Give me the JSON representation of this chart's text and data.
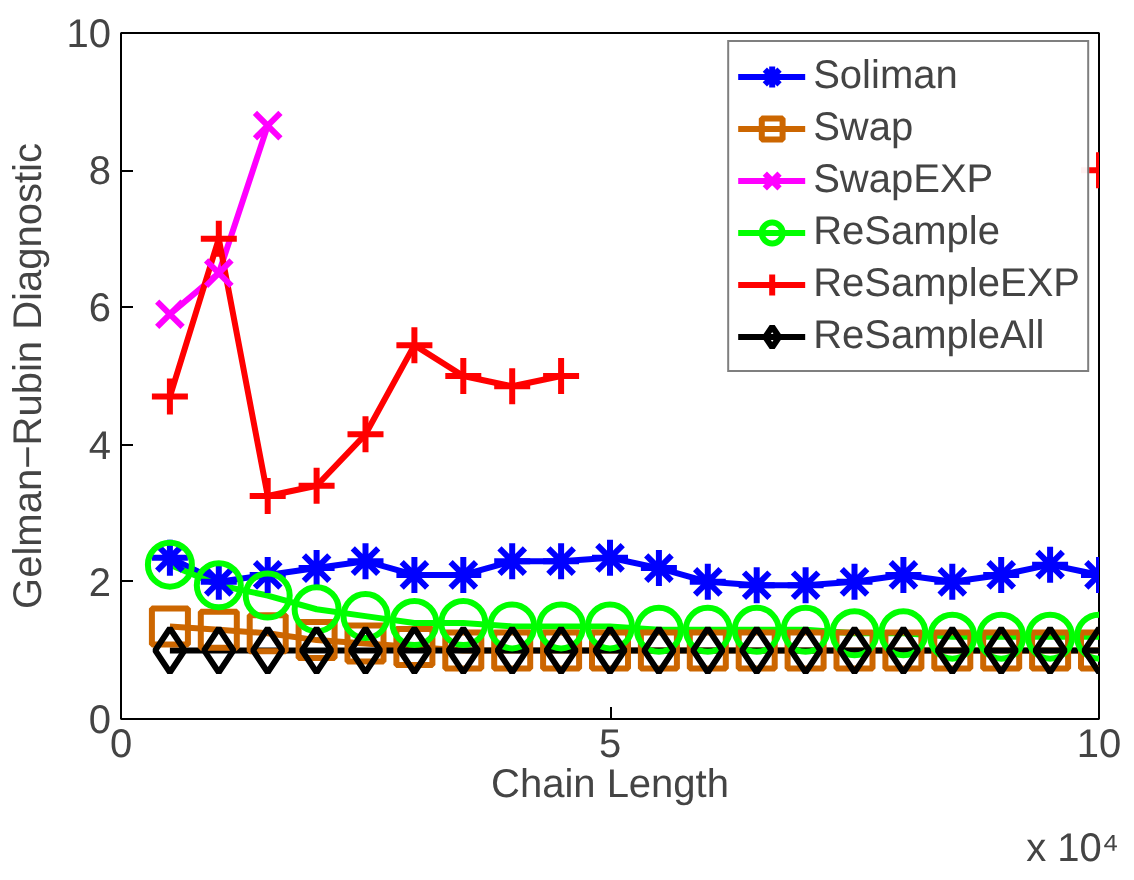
{
  "chart_data": {
    "type": "line",
    "xlabel": "Chain Length",
    "ylabel": "Gelman−Rubin Diagnostic",
    "x": [
      0.5,
      1,
      1.5,
      2,
      2.5,
      3,
      3.5,
      4,
      4.5,
      5,
      5.5,
      6,
      6.5,
      7,
      7.5,
      8,
      8.5,
      9,
      9.5,
      10
    ],
    "xlim": [
      0,
      10
    ],
    "xticks": [
      0,
      5,
      10
    ],
    "ylim": [
      0,
      10
    ],
    "yticks": [
      0,
      2,
      4,
      6,
      8,
      10
    ],
    "grid": false,
    "legend": "top right",
    "line_style": "solid",
    "annotations": [
      "x 10⁴"
    ],
    "series": [
      {
        "name": "Soliman",
        "color": "#0000ff",
        "marker": "cross",
        "values": [
          2.35,
          2.0,
          2.1,
          2.2,
          2.3,
          2.1,
          2.1,
          2.3,
          2.3,
          2.35,
          2.2,
          2.0,
          1.95,
          1.95,
          2.0,
          2.1,
          2.0,
          2.1,
          2.25,
          2.1
        ]
      },
      {
        "name": "Swap",
        "color": "#cc6600",
        "marker": "square",
        "values": [
          1.35,
          1.3,
          1.25,
          1.15,
          1.1,
          1.05,
          1.0,
          1.0,
          1.0,
          1.0,
          1.0,
          1.0,
          1.0,
          1.0,
          1.0,
          1.0,
          1.0,
          1.0,
          1.0,
          1.0
        ]
      },
      {
        "name": "SwapEXP",
        "color": "#ff00ff",
        "marker": "x",
        "values": [
          5.9,
          6.5,
          8.65,
          null,
          null,
          null,
          null,
          null,
          null,
          null,
          null,
          null,
          null,
          null,
          null,
          null,
          null,
          null,
          null,
          null
        ]
      },
      {
        "name": "ReSample",
        "color": "#00ff00",
        "marker": "circle",
        "values": [
          2.25,
          1.95,
          1.8,
          1.6,
          1.5,
          1.4,
          1.4,
          1.35,
          1.35,
          1.35,
          1.3,
          1.3,
          1.3,
          1.3,
          1.25,
          1.25,
          1.2,
          1.2,
          1.2,
          1.2
        ]
      },
      {
        "name": "ReSampleEXP",
        "color": "#ff0000",
        "marker": "plus",
        "values": [
          4.7,
          7.0,
          3.25,
          3.4,
          4.15,
          5.45,
          5.0,
          4.85,
          5.0,
          null,
          null,
          null,
          null,
          null,
          null,
          null,
          null,
          null,
          null,
          8.0
        ]
      },
      {
        "name": "ReSampleAll",
        "color": "#000000",
        "marker": "diamond",
        "values": [
          1.0,
          1.0,
          1.0,
          1.0,
          1.0,
          1.0,
          1.0,
          1.0,
          1.0,
          1.0,
          1.0,
          1.0,
          1.0,
          1.0,
          1.0,
          1.0,
          1.0,
          1.0,
          1.0,
          1.0
        ]
      }
    ]
  }
}
